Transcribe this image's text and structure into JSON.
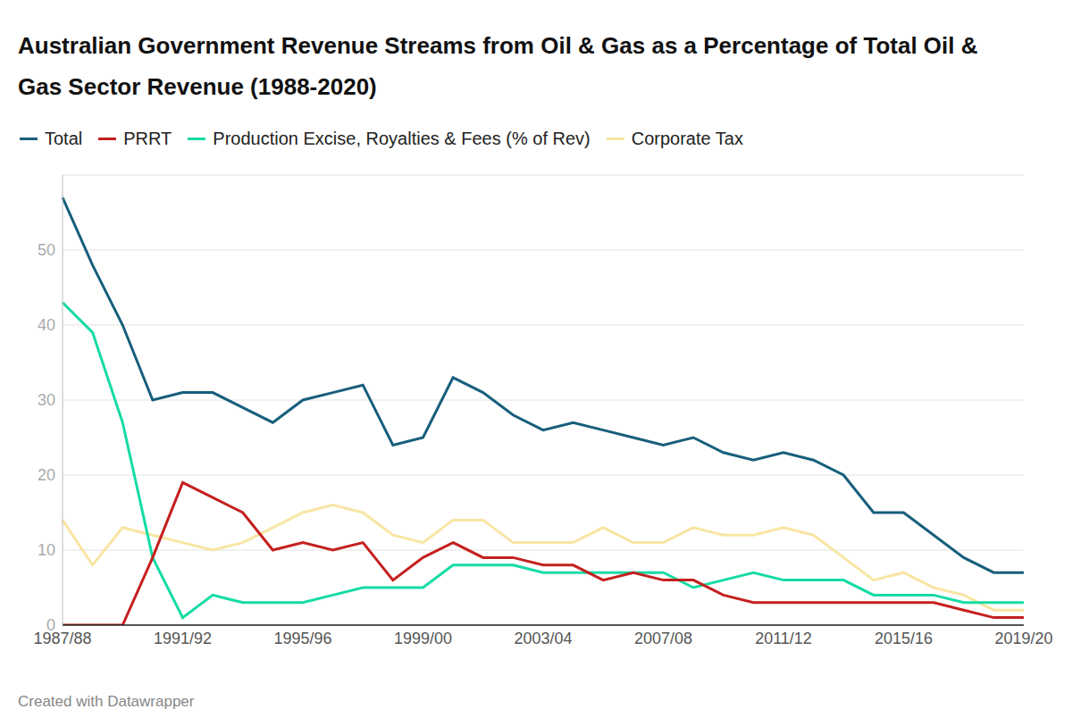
{
  "chart_data": {
    "type": "line",
    "title": "Australian Government Revenue Streams from Oil & Gas as a Percentage of Total Oil & Gas Sector Revenue (1988-2020)",
    "source": "Created with Datawrapper",
    "categories": [
      "1987/88",
      null,
      null,
      null,
      "1991/92",
      null,
      null,
      null,
      "1995/96",
      null,
      null,
      null,
      "1999/00",
      null,
      null,
      null,
      "2003/04",
      null,
      null,
      null,
      "2007/08",
      null,
      null,
      null,
      "2011/12",
      null,
      null,
      null,
      "2015/16",
      null,
      null,
      null,
      "2019/20"
    ],
    "series": [
      {
        "name": "Total",
        "color": "#175e7c",
        "values": [
          57,
          48,
          40,
          30,
          31,
          31,
          29,
          27,
          30,
          31,
          32,
          24,
          25,
          33,
          31,
          28,
          26,
          27,
          26,
          25,
          24,
          25,
          23,
          22,
          23,
          22,
          20,
          15,
          15,
          12,
          9,
          7,
          7
        ]
      },
      {
        "name": "PRRT",
        "color": "#c4201f",
        "values": [
          0,
          0,
          0,
          9,
          19,
          17,
          15,
          10,
          11,
          10,
          11,
          6,
          9,
          11,
          9,
          9,
          8,
          8,
          6,
          7,
          6,
          6,
          4,
          3,
          3,
          3,
          3,
          3,
          3,
          3,
          2,
          1,
          1
        ]
      },
      {
        "name": "Production Excise, Royalties & Fees (% of Rev)",
        "color": "#15dba4",
        "values": [
          43,
          39,
          27,
          9,
          1,
          4,
          3,
          3,
          3,
          4,
          5,
          5,
          5,
          8,
          8,
          8,
          7,
          7,
          7,
          7,
          7,
          5,
          6,
          7,
          6,
          6,
          6,
          4,
          4,
          4,
          3,
          3,
          3
        ]
      },
      {
        "name": "Corporate Tax",
        "color": "#f8e5a3",
        "values": [
          14,
          8,
          13,
          12,
          11,
          10,
          11,
          13,
          15,
          16,
          15,
          12,
          11,
          14,
          14,
          11,
          11,
          11,
          13,
          11,
          11,
          13,
          12,
          12,
          13,
          12,
          9,
          6,
          7,
          5,
          4,
          2,
          2
        ]
      }
    ],
    "ylim": [
      0,
      60
    ],
    "yticks": [
      0,
      10,
      20,
      30,
      40,
      50
    ],
    "grid": true,
    "legend": "top"
  }
}
